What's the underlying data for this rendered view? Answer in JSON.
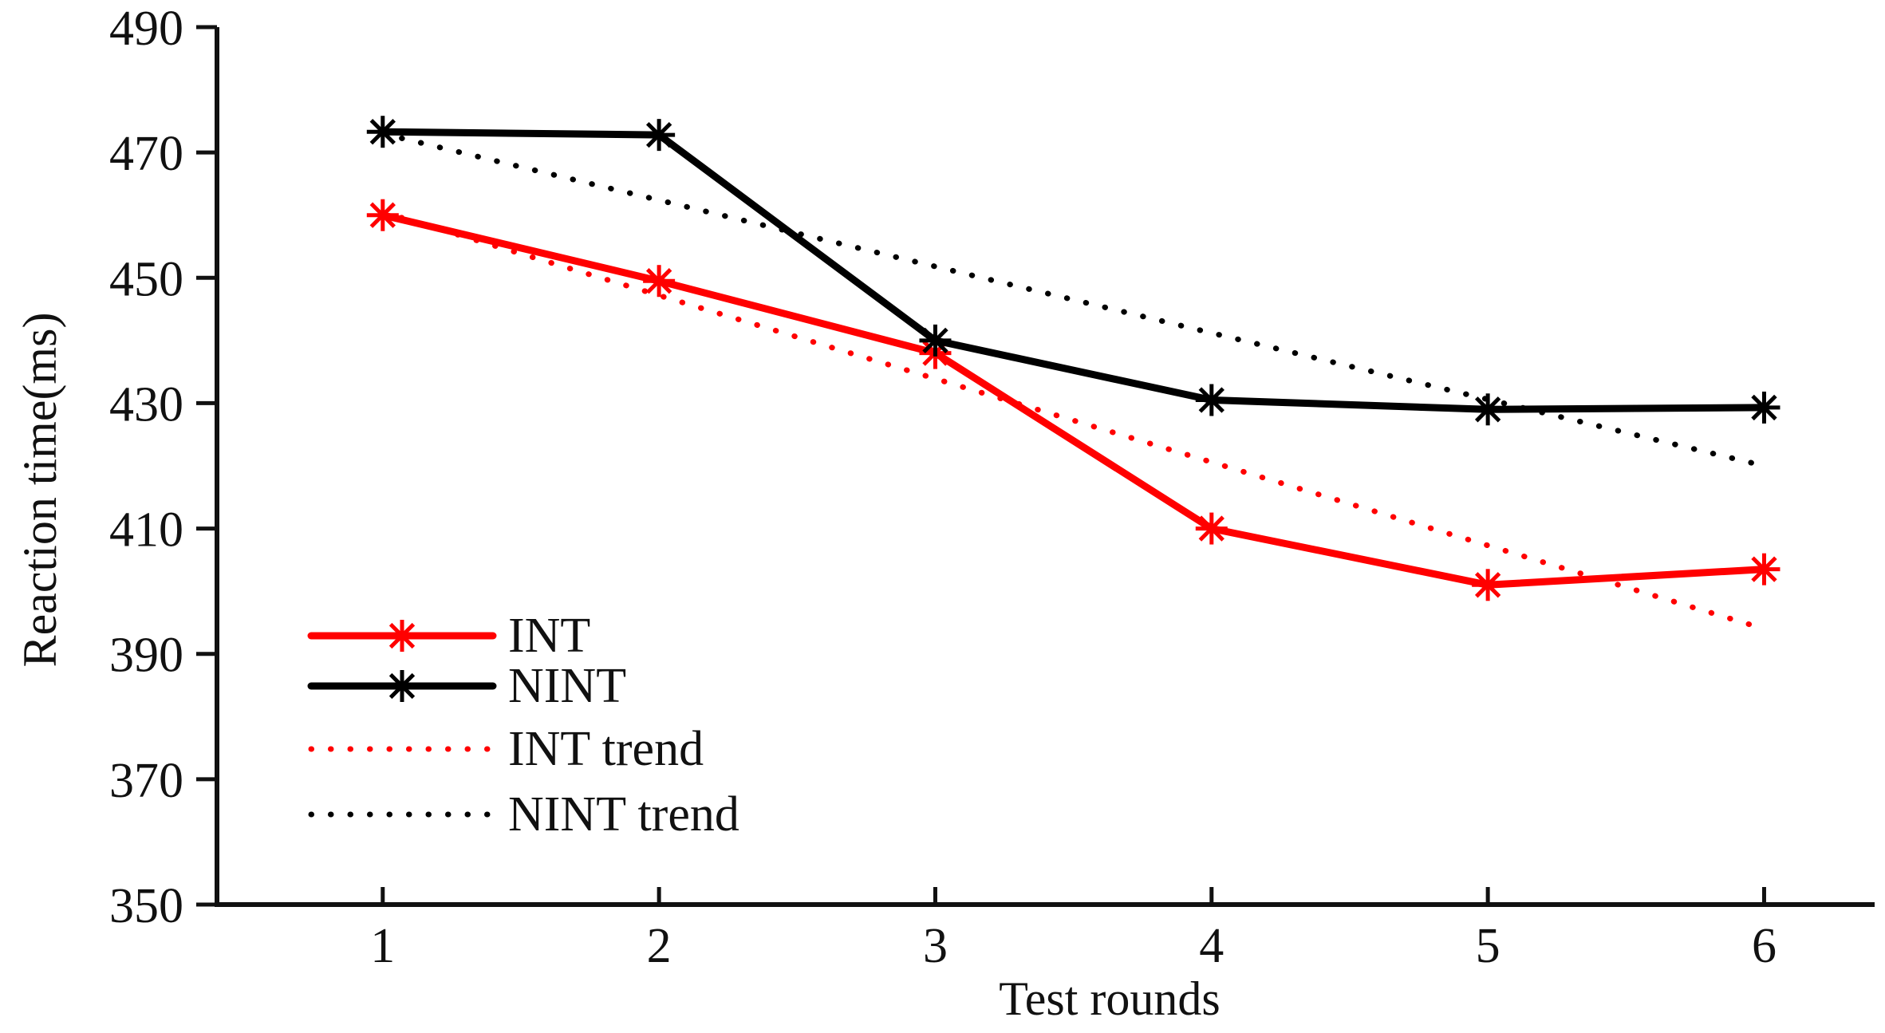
{
  "chart_data": {
    "type": "line",
    "title": "",
    "xlabel": "Test rounds",
    "ylabel": "Reaction time(ms)",
    "x": [
      1,
      2,
      3,
      4,
      5,
      6
    ],
    "xticks": [
      "1",
      "2",
      "3",
      "4",
      "5",
      "6"
    ],
    "yticks": [
      "350",
      "370",
      "390",
      "410",
      "430",
      "450",
      "470",
      "490"
    ],
    "xlim": [
      0.4,
      6.4
    ],
    "ylim": [
      350,
      490
    ],
    "grid": false,
    "legend_position": "bottom-left",
    "series": [
      {
        "name": "INT",
        "color": "#ff0000",
        "style": "solid",
        "marker": "asterisk",
        "values": [
          460,
          449.5,
          438,
          410,
          401,
          403.5
        ]
      },
      {
        "name": "NINT",
        "color": "#000000",
        "style": "solid",
        "marker": "asterisk",
        "values": [
          473.3,
          472.8,
          440,
          430.5,
          429,
          429.3
        ]
      },
      {
        "name": "INT trend",
        "color": "#ff0000",
        "style": "dotted",
        "marker": "none",
        "values": [
          460.5,
          447.2,
          433.9,
          420.6,
          407.3,
          394
        ]
      },
      {
        "name": "NINT trend",
        "color": "#000000",
        "style": "dotted",
        "marker": "none",
        "values": [
          473,
          462.4,
          451.8,
          441.2,
          430.6,
          420
        ]
      }
    ]
  }
}
